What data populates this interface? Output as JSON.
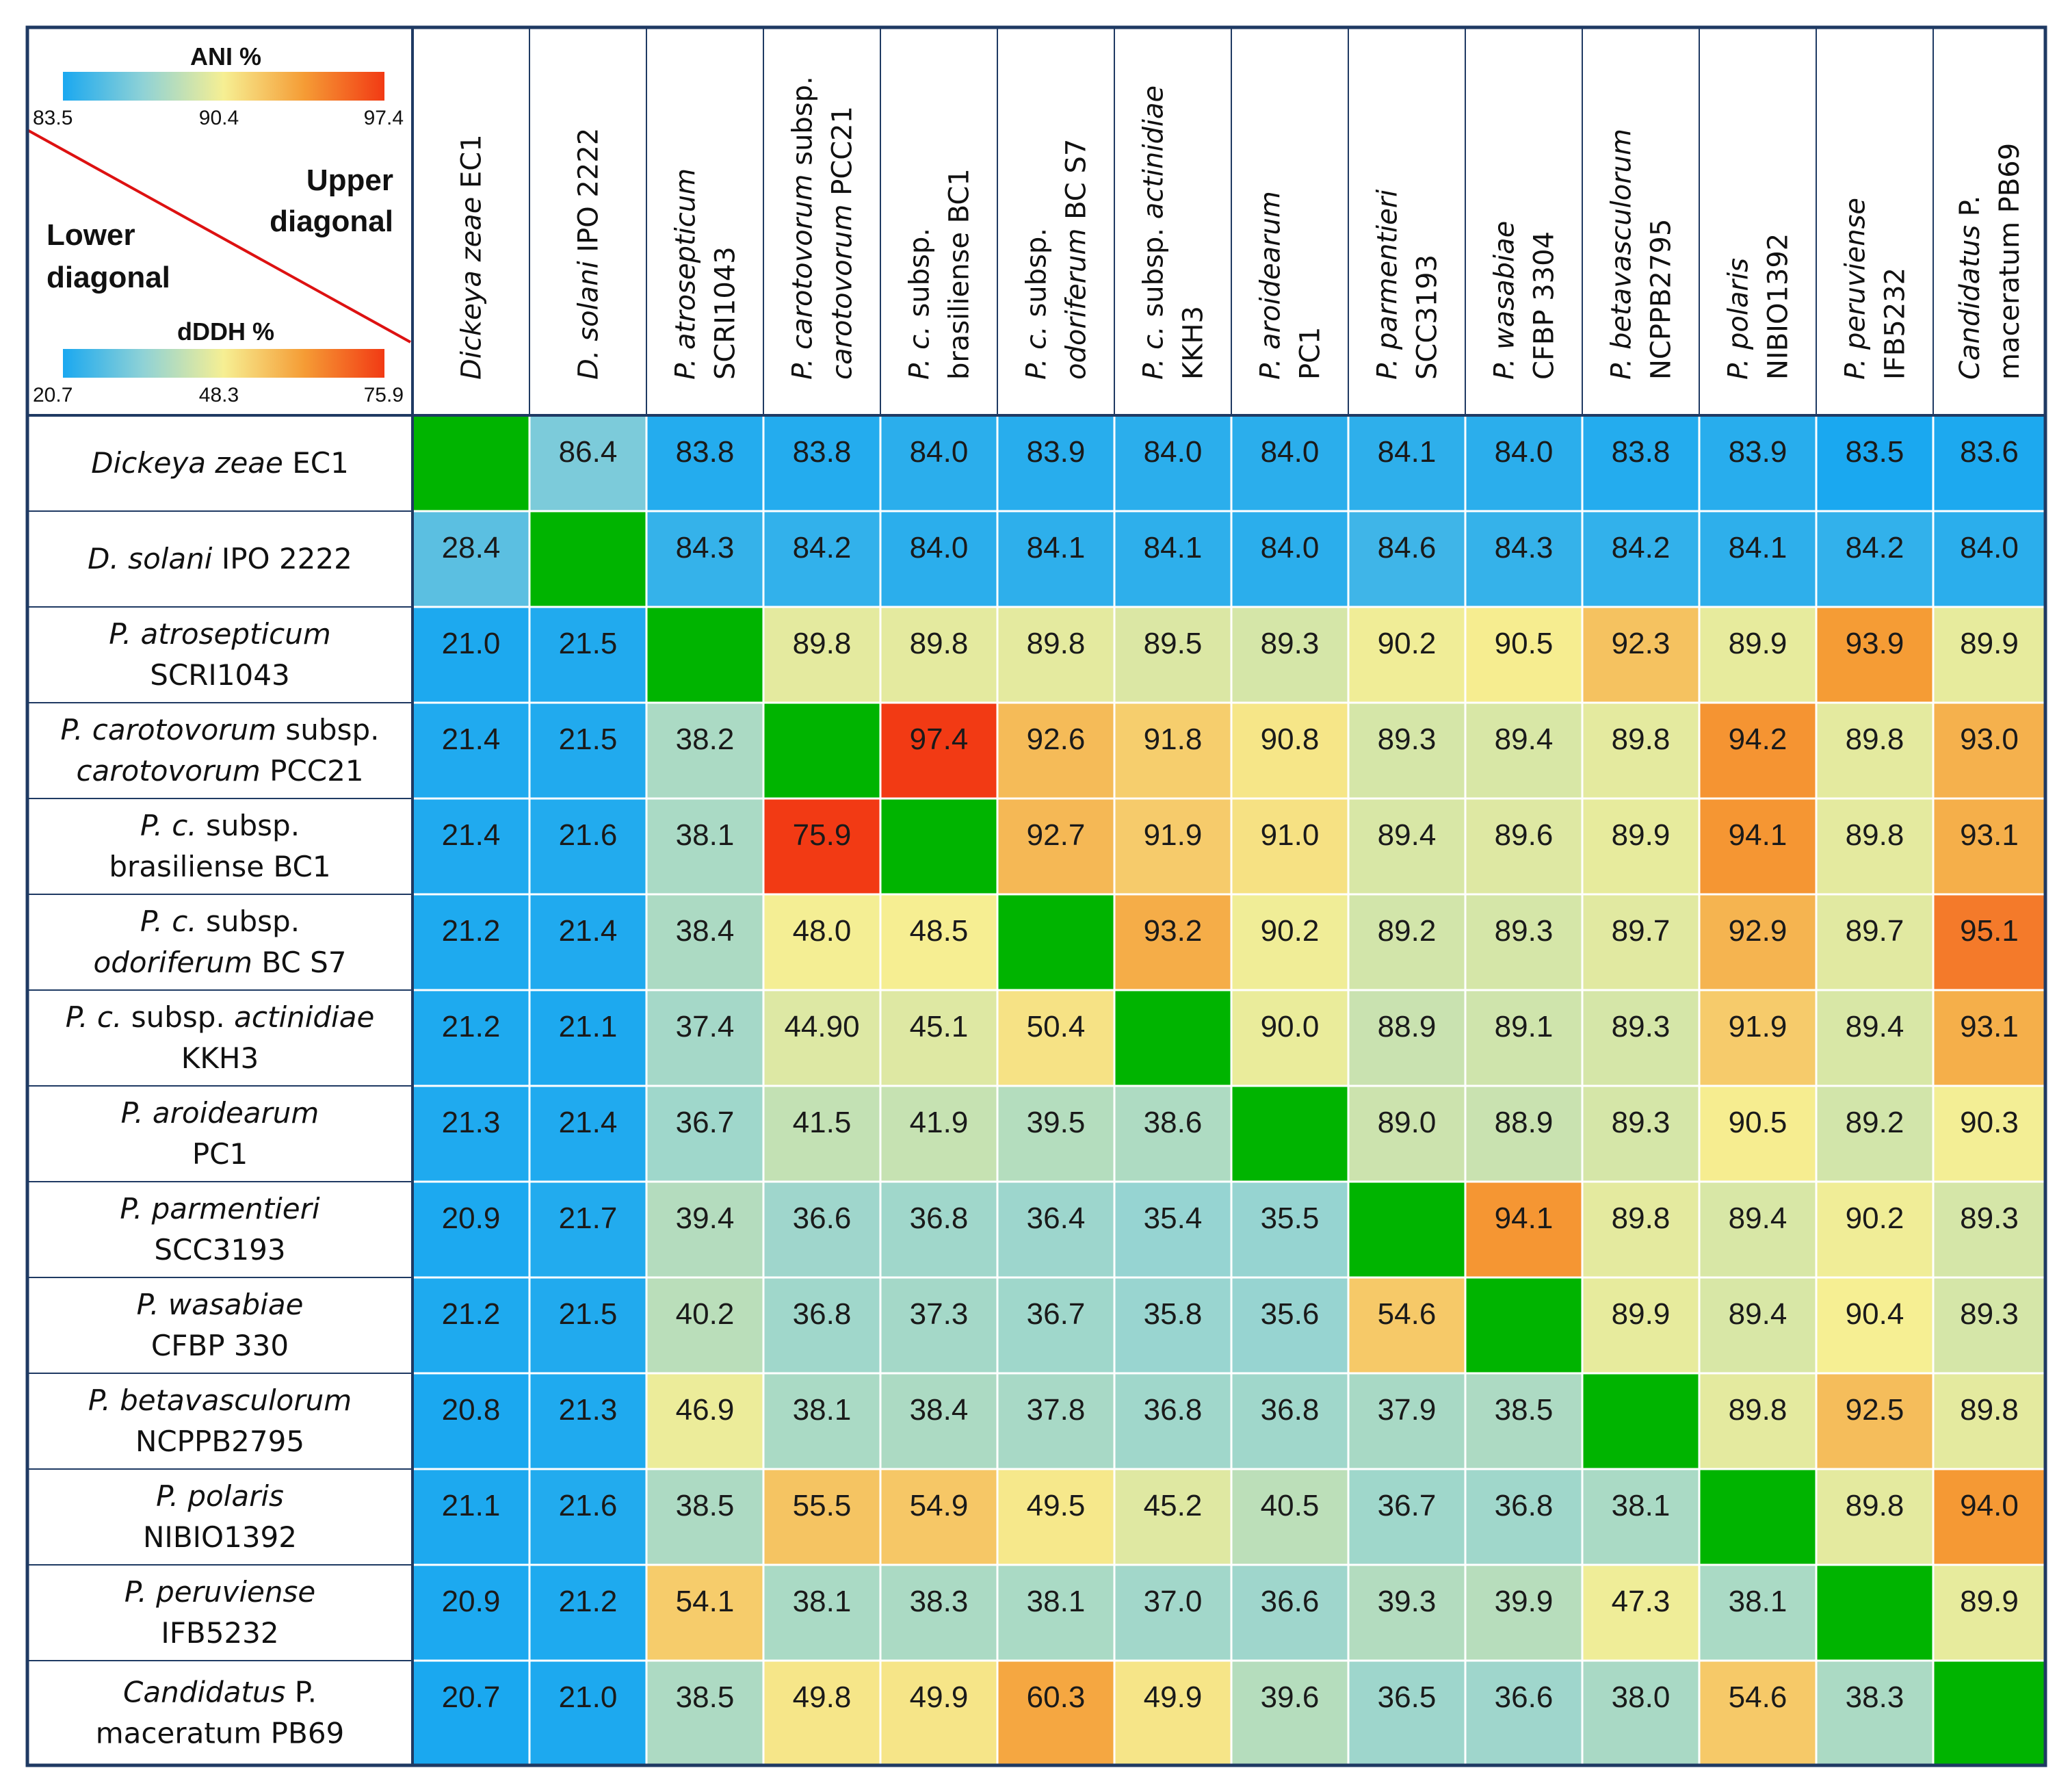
{
  "chart_data": {
    "type": "heatmap",
    "title": "",
    "description_upper": "Upper diagonal",
    "description_lower": "Lower diagonal",
    "upper_metric": {
      "name": "ANI %",
      "min": 83.5,
      "mid": 90.4,
      "max": 97.4,
      "min_label": "83.5",
      "mid_label": "90.4",
      "max_label": "97.4"
    },
    "lower_metric": {
      "name": "dDDH %",
      "min": 20.7,
      "mid": 48.3,
      "max": 75.9,
      "min_label": "20.7",
      "mid_label": "48.3",
      "max_label": "75.9"
    },
    "diagonal_color": "#00b400",
    "colors": {
      "low": "#1aa8f0",
      "low2": "#8fd2d6",
      "mid": "#f6ef93",
      "high2": "#f59c35",
      "high": "#f23a14",
      "border": "#1f3a63",
      "legend_line": "#dd1111"
    },
    "row_labels": [
      [
        {
          "t": "Dickeya zeae",
          "i": true
        },
        {
          "t": " EC1",
          "i": false
        }
      ],
      [
        {
          "t": "D. solani",
          "i": true
        },
        {
          "t": " IPO 2222",
          "i": false
        }
      ],
      [
        {
          "t": "P. atrosepticum",
          "i": true
        }
      ],
      [
        {
          "t": "SCRI1043",
          "i": false
        }
      ],
      [
        {
          "t": "P. carotovorum",
          "i": true
        },
        {
          "t": " subsp.",
          "i": false
        }
      ],
      [
        {
          "t": "carotovorum",
          "i": true
        },
        {
          "t": " PCC21",
          "i": false
        }
      ],
      [
        {
          "t": "P. c.",
          "i": true
        },
        {
          "t": " subsp.",
          "i": false
        }
      ],
      [
        {
          "t": "brasiliense BC1",
          "i": false
        }
      ],
      [
        {
          "t": "P. c.",
          "i": true
        },
        {
          "t": " subsp.",
          "i": false
        }
      ],
      [
        {
          "t": "odoriferum",
          "i": true
        },
        {
          "t": " BC S7",
          "i": false
        }
      ],
      [
        {
          "t": "P. c.",
          "i": true
        },
        {
          "t": " subsp. ",
          "i": false
        },
        {
          "t": "actinidiae",
          "i": true
        }
      ],
      [
        {
          "t": "KKH3",
          "i": false
        }
      ],
      [
        {
          "t": "P. aroidearum",
          "i": true
        }
      ],
      [
        {
          "t": "PC1",
          "i": false
        }
      ],
      [
        {
          "t": "P. parmentieri",
          "i": true
        }
      ],
      [
        {
          "t": "SCC3193",
          "i": false
        }
      ],
      [
        {
          "t": "P. wasabiae",
          "i": true
        }
      ],
      [
        {
          "t": "CFBP 330",
          "i": false
        }
      ],
      [
        {
          "t": "P. betavasculorum",
          "i": true
        }
      ],
      [
        {
          "t": "NCPPB2795",
          "i": false
        }
      ],
      [
        {
          "t": "P. polaris",
          "i": true
        }
      ],
      [
        {
          "t": "NIBIO1392",
          "i": false
        }
      ],
      [
        {
          "t": "P. peruviense",
          "i": true
        }
      ],
      [
        {
          "t": "IFB5232",
          "i": false
        }
      ],
      [
        {
          "t": "Candidatus",
          "i": true
        },
        {
          "t": " P.",
          "i": false
        }
      ],
      [
        {
          "t": "maceratum PB69",
          "i": false
        }
      ]
    ],
    "row_line_map": [
      [
        0
      ],
      [
        1
      ],
      [
        2,
        3
      ],
      [
        4,
        5
      ],
      [
        6,
        7
      ],
      [
        8,
        9
      ],
      [
        10,
        11
      ],
      [
        12,
        13
      ],
      [
        14,
        15
      ],
      [
        16,
        17
      ],
      [
        18,
        19
      ],
      [
        20,
        21
      ],
      [
        22,
        23
      ],
      [
        24,
        25
      ]
    ],
    "col_labels": [
      [
        [
          {
            "t": "Dickeya zeae",
            "i": true
          },
          {
            "t": " EC1",
            "i": false
          }
        ]
      ],
      [
        [
          {
            "t": "D. solani",
            "i": true
          },
          {
            "t": " IPO 2222",
            "i": false
          }
        ]
      ],
      [
        [
          {
            "t": "P. atrosepticum",
            "i": true
          }
        ],
        [
          {
            "t": "SCRI1043",
            "i": false
          }
        ]
      ],
      [
        [
          {
            "t": "P. carotovorum",
            "i": true
          },
          {
            "t": " subsp.",
            "i": false
          }
        ],
        [
          {
            "t": "carotovorum",
            "i": true
          },
          {
            "t": " PCC21",
            "i": false
          }
        ]
      ],
      [
        [
          {
            "t": "P. c.",
            "i": true
          },
          {
            "t": " subsp.",
            "i": false
          }
        ],
        [
          {
            "t": "brasiliense BC1",
            "i": false
          }
        ]
      ],
      [
        [
          {
            "t": "P. c.",
            "i": true
          },
          {
            "t": " subsp.",
            "i": false
          }
        ],
        [
          {
            "t": "odoriferum",
            "i": true
          },
          {
            "t": " BC S7",
            "i": false
          }
        ]
      ],
      [
        [
          {
            "t": "P. c.",
            "i": true
          },
          {
            "t": " subsp. ",
            "i": false
          },
          {
            "t": "actinidiae",
            "i": true
          }
        ],
        [
          {
            "t": "KKH3",
            "i": false
          }
        ]
      ],
      [
        [
          {
            "t": "P. aroidearum",
            "i": true
          }
        ],
        [
          {
            "t": "PC1",
            "i": false
          }
        ]
      ],
      [
        [
          {
            "t": "P. parmentieri",
            "i": true
          }
        ],
        [
          {
            "t": "SCC3193",
            "i": false
          }
        ]
      ],
      [
        [
          {
            "t": "P. wasabiae",
            "i": true
          }
        ],
        [
          {
            "t": "CFBP 3304",
            "i": false
          }
        ]
      ],
      [
        [
          {
            "t": "P. betavasculorum",
            "i": true
          }
        ],
        [
          {
            "t": "NCPPB2795",
            "i": false
          }
        ]
      ],
      [
        [
          {
            "t": "P. polaris",
            "i": true
          }
        ],
        [
          {
            "t": "NIBIO1392",
            "i": false
          }
        ]
      ],
      [
        [
          {
            "t": "P. peruviense",
            "i": true
          }
        ],
        [
          {
            "t": "IFB5232",
            "i": false
          }
        ]
      ],
      [
        [
          {
            "t": "Candidatus",
            "i": true
          },
          {
            "t": " P.",
            "i": false
          }
        ],
        [
          {
            "t": "maceratum PB69",
            "i": false
          }
        ]
      ]
    ],
    "values": [
      [
        null,
        "86.4",
        "83.8",
        "83.8",
        "84.0",
        "83.9",
        "84.0",
        "84.0",
        "84.1",
        "84.0",
        "83.8",
        "83.9",
        "83.5",
        "83.6"
      ],
      [
        "28.4",
        null,
        "84.3",
        "84.2",
        "84.0",
        "84.1",
        "84.1",
        "84.0",
        "84.6",
        "84.3",
        "84.2",
        "84.1",
        "84.2",
        "84.0"
      ],
      [
        "21.0",
        "21.5",
        null,
        "89.8",
        "89.8",
        "89.8",
        "89.5",
        "89.3",
        "90.2",
        "90.5",
        "92.3",
        "89.9",
        "93.9",
        "89.9"
      ],
      [
        "21.4",
        "21.5",
        "38.2",
        null,
        "97.4",
        "92.6",
        "91.8",
        "90.8",
        "89.3",
        "89.4",
        "89.8",
        "94.2",
        "89.8",
        "93.0"
      ],
      [
        "21.4",
        "21.6",
        "38.1",
        "75.9",
        null,
        "92.7",
        "91.9",
        "91.0",
        "89.4",
        "89.6",
        "89.9",
        "94.1",
        "89.8",
        "93.1"
      ],
      [
        "21.2",
        "21.4",
        "38.4",
        "48.0",
        "48.5",
        null,
        "93.2",
        "90.2",
        "89.2",
        "89.3",
        "89.7",
        "92.9",
        "89.7",
        "95.1"
      ],
      [
        "21.2",
        "21.1",
        "37.4",
        "44.90",
        "45.1",
        "50.4",
        null,
        "90.0",
        "88.9",
        "89.1",
        "89.3",
        "91.9",
        "89.4",
        "93.1"
      ],
      [
        "21.3",
        "21.4",
        "36.7",
        "41.5",
        "41.9",
        "39.5",
        "38.6",
        null,
        "89.0",
        "88.9",
        "89.3",
        "90.5",
        "89.2",
        "90.3"
      ],
      [
        "20.9",
        "21.7",
        "39.4",
        "36.6",
        "36.8",
        "36.4",
        "35.4",
        "35.5",
        null,
        "94.1",
        "89.8",
        "89.4",
        "90.2",
        "89.3"
      ],
      [
        "21.2",
        "21.5",
        "40.2",
        "36.8",
        "37.3",
        "36.7",
        "35.8",
        "35.6",
        "54.6",
        null,
        "89.9",
        "89.4",
        "90.4",
        "89.3"
      ],
      [
        "20.8",
        "21.3",
        "46.9",
        "38.1",
        "38.4",
        "37.8",
        "36.8",
        "36.8",
        "37.9",
        "38.5",
        null,
        "89.8",
        "92.5",
        "89.8"
      ],
      [
        "21.1",
        "21.6",
        "38.5",
        "55.5",
        "54.9",
        "49.5",
        "45.2",
        "40.5",
        "36.7",
        "36.8",
        "38.1",
        null,
        "89.8",
        "94.0"
      ],
      [
        "20.9",
        "21.2",
        "54.1",
        "38.1",
        "38.3",
        "38.1",
        "37.0",
        "36.6",
        "39.3",
        "39.9",
        "47.3",
        "38.1",
        null,
        "89.9"
      ],
      [
        "20.7",
        "21.0",
        "38.5",
        "49.8",
        "49.9",
        "60.3",
        "49.9",
        "39.6",
        "36.5",
        "36.6",
        "38.0",
        "54.6",
        "38.3",
        null
      ]
    ]
  }
}
